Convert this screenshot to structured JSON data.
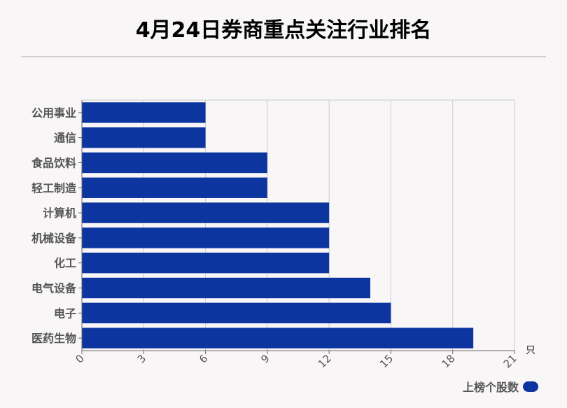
{
  "chart_data": {
    "type": "bar",
    "orientation": "horizontal",
    "title": "4月24日券商重点关注行业排名",
    "categories": [
      "公用事业",
      "通信",
      "食品饮料",
      "轻工制造",
      "计算机",
      "机械设备",
      "化工",
      "电气设备",
      "电子",
      "医药生物"
    ],
    "series": [
      {
        "name": "上榜个股数",
        "values": [
          6,
          6,
          9,
          9,
          12,
          12,
          12,
          14,
          15,
          19
        ]
      }
    ],
    "xlim": [
      0,
      21
    ],
    "xticks": [
      "0",
      "3",
      "6",
      "9",
      "12",
      "15",
      "18",
      "21"
    ],
    "xunit": "只",
    "xlabel": "",
    "ylabel": "",
    "grid": true,
    "legend_position": "bottom-right",
    "bar_color": "#0d35a0",
    "grid_color": "#cccccc",
    "axis_color": "#666666"
  }
}
